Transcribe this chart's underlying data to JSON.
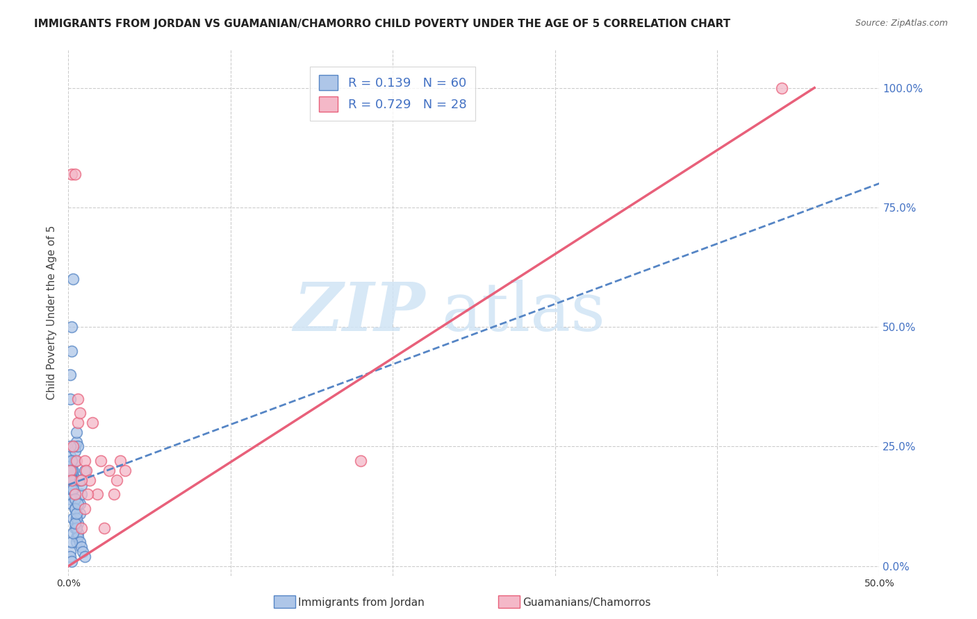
{
  "title": "IMMIGRANTS FROM JORDAN VS GUAMANIAN/CHAMORRO CHILD POVERTY UNDER THE AGE OF 5 CORRELATION CHART",
  "source": "Source: ZipAtlas.com",
  "ylabel": "Child Poverty Under the Age of 5",
  "R1": 0.139,
  "N1": 60,
  "R2": 0.729,
  "N2": 28,
  "legend_label1": "Immigrants from Jordan",
  "legend_label2": "Guamanians/Chamorros",
  "color1": "#aec6e8",
  "color2": "#f4b8c8",
  "line_color1": "#5585c5",
  "line_color2": "#e8607a",
  "watermark_color": "#d0e4f5",
  "background_color": "#ffffff",
  "grid_color": "#cccccc",
  "jordan_x": [
    0.001,
    0.002,
    0.001,
    0.002,
    0.003,
    0.003,
    0.002,
    0.001,
    0.004,
    0.004,
    0.001,
    0.002,
    0.002,
    0.003,
    0.003,
    0.004,
    0.004,
    0.005,
    0.005,
    0.006,
    0.001,
    0.001,
    0.002,
    0.002,
    0.003,
    0.003,
    0.004,
    0.004,
    0.005,
    0.005,
    0.006,
    0.006,
    0.007,
    0.007,
    0.008,
    0.008,
    0.001,
    0.002,
    0.002,
    0.003,
    0.003,
    0.004,
    0.004,
    0.005,
    0.005,
    0.006,
    0.007,
    0.008,
    0.009,
    0.01,
    0.001,
    0.001,
    0.002,
    0.002,
    0.003,
    0.004,
    0.005,
    0.006,
    0.007,
    0.01
  ],
  "jordan_y": [
    0.2,
    0.18,
    0.22,
    0.15,
    0.17,
    0.19,
    0.21,
    0.23,
    0.25,
    0.22,
    0.14,
    0.13,
    0.16,
    0.18,
    0.2,
    0.22,
    0.24,
    0.26,
    0.28,
    0.25,
    0.35,
    0.4,
    0.45,
    0.5,
    0.6,
    0.1,
    0.12,
    0.08,
    0.06,
    0.05,
    0.07,
    0.09,
    0.11,
    0.13,
    0.15,
    0.17,
    0.25,
    0.22,
    0.2,
    0.18,
    0.16,
    0.14,
    0.12,
    0.1,
    0.08,
    0.06,
    0.05,
    0.04,
    0.03,
    0.02,
    0.03,
    0.02,
    0.01,
    0.05,
    0.07,
    0.09,
    0.11,
    0.13,
    0.18,
    0.2
  ],
  "guam_x": [
    0.001,
    0.002,
    0.003,
    0.004,
    0.005,
    0.006,
    0.007,
    0.008,
    0.01,
    0.011,
    0.013,
    0.015,
    0.018,
    0.02,
    0.022,
    0.025,
    0.028,
    0.03,
    0.032,
    0.035,
    0.002,
    0.004,
    0.006,
    0.008,
    0.01,
    0.012,
    0.44,
    0.18
  ],
  "guam_y": [
    0.2,
    0.18,
    0.25,
    0.15,
    0.22,
    0.3,
    0.32,
    0.08,
    0.22,
    0.2,
    0.18,
    0.3,
    0.15,
    0.22,
    0.08,
    0.2,
    0.15,
    0.18,
    0.22,
    0.2,
    0.82,
    0.82,
    0.35,
    0.18,
    0.12,
    0.15,
    1.0,
    0.22
  ],
  "xlim": [
    0.0,
    0.5
  ],
  "ylim": [
    -0.02,
    1.08
  ],
  "xticks": [
    0.0,
    0.1,
    0.2,
    0.3,
    0.4,
    0.5
  ],
  "yticks": [
    0.0,
    0.25,
    0.5,
    0.75,
    1.0
  ],
  "xtick_labels": [
    "0.0%",
    "",
    "",
    "",
    "",
    "50.0%"
  ],
  "ytick_labels_right": [
    "0.0%",
    "25.0%",
    "50.0%",
    "75.0%",
    "100.0%"
  ],
  "jordan_line_x": [
    0.0,
    0.5
  ],
  "jordan_line_y": [
    0.17,
    0.8
  ],
  "guam_line_x": [
    0.0,
    0.46
  ],
  "guam_line_y": [
    0.0,
    1.0
  ],
  "title_fontsize": 11,
  "tick_fontsize": 10,
  "label_color_y_right": "#4472c4",
  "label_color_x": "#333333"
}
